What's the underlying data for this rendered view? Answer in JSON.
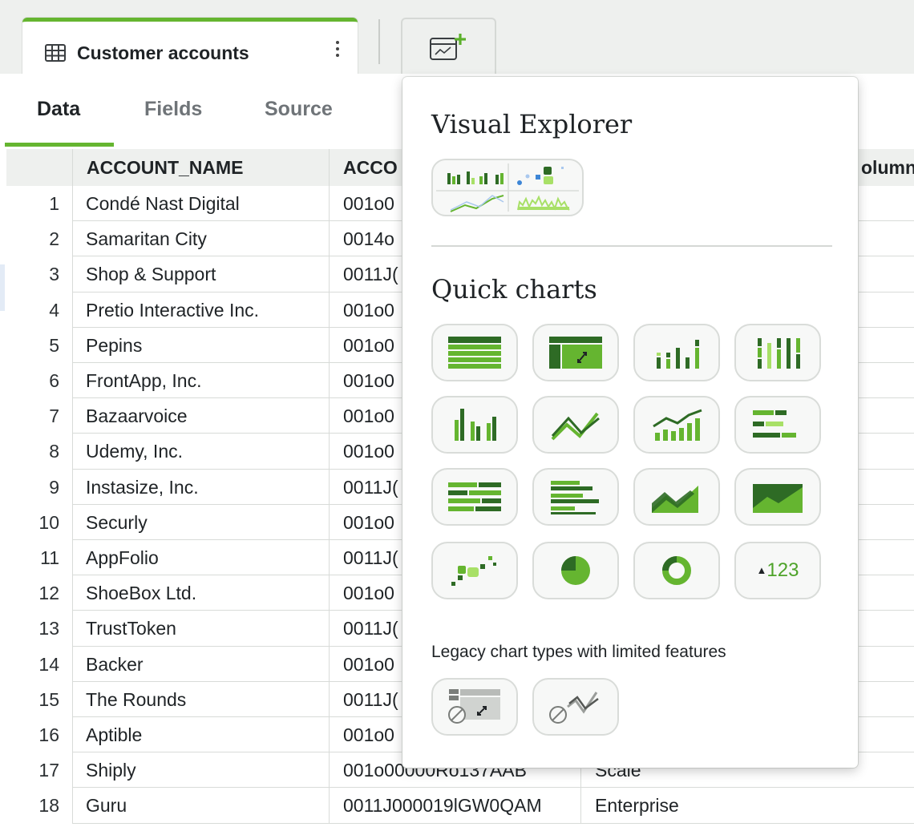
{
  "topbar": {
    "tab_label": "Customer accounts",
    "tab_icon": "table-icon",
    "kebab_icon": "kebab-icon",
    "add_icon": "add-chart-icon"
  },
  "subtabs": [
    {
      "label": "Data",
      "active": true
    },
    {
      "label": "Fields",
      "active": false
    },
    {
      "label": "Source",
      "active": false
    }
  ],
  "table": {
    "columns": [
      "ACCOUNT_NAME",
      "ACCO",
      "olumn_"
    ],
    "rows": [
      {
        "n": "1",
        "name": "Condé Nast Digital",
        "id": "001o0",
        "type": ""
      },
      {
        "n": "2",
        "name": "Samaritan City",
        "id": "0014o",
        "type": ""
      },
      {
        "n": "3",
        "name": "Shop & Support",
        "id": "0011J(",
        "type": ""
      },
      {
        "n": "4",
        "name": "Pretio Interactive Inc.",
        "id": "001o0",
        "type": ""
      },
      {
        "n": "5",
        "name": "Pepins",
        "id": "001o0",
        "type": ""
      },
      {
        "n": "6",
        "name": "FrontApp, Inc.",
        "id": "001o0",
        "type": ""
      },
      {
        "n": "7",
        "name": "Bazaarvoice",
        "id": "001o0",
        "type": ""
      },
      {
        "n": "8",
        "name": "Udemy, Inc.",
        "id": "001o0",
        "type": ""
      },
      {
        "n": "9",
        "name": "Instasize, Inc.",
        "id": "0011J(",
        "type": ""
      },
      {
        "n": "10",
        "name": "Securly",
        "id": "001o0",
        "type": ""
      },
      {
        "n": "11",
        "name": "AppFolio",
        "id": "0011J(",
        "type": ""
      },
      {
        "n": "12",
        "name": "ShoeBox Ltd.",
        "id": "001o0",
        "type": ""
      },
      {
        "n": "13",
        "name": "TrustToken",
        "id": "0011J(",
        "type": ""
      },
      {
        "n": "14",
        "name": "Backer",
        "id": "001o0",
        "type": ""
      },
      {
        "n": "15",
        "name": "The Rounds",
        "id": "0011J(",
        "type": ""
      },
      {
        "n": "16",
        "name": "Aptible",
        "id": "001o0",
        "type": ""
      },
      {
        "n": "17",
        "name": "Shiply",
        "id": "001o00000Ro137AAB",
        "type": "Scale"
      },
      {
        "n": "18",
        "name": "Guru",
        "id": "0011J000019lGW0QAM",
        "type": "Enterprise"
      }
    ]
  },
  "popover": {
    "visual_explorer_title": "Visual Explorer",
    "quick_charts_title": "Quick charts",
    "legacy_label": "Legacy chart types with limited features",
    "kpi_label": "123",
    "quick_charts": [
      "table-chart-icon",
      "pivot-table-icon",
      "bar-chart-icon",
      "grouped-bar-chart-icon",
      "column-chart-icon",
      "line-chart-icon",
      "line-bar-combo-icon",
      "horizontal-bar-chart-icon",
      "stacked-horizontal-bar-icon",
      "grouped-horizontal-bar-icon",
      "area-chart-icon",
      "stacked-area-chart-icon",
      "scatter-chart-icon",
      "pie-chart-icon",
      "donut-chart-icon",
      "kpi-icon"
    ],
    "legacy_charts": [
      "legacy-pivot-table-icon",
      "legacy-line-chart-icon"
    ]
  },
  "colors": {
    "accent": "#65b530",
    "dark_green": "#2e6b25",
    "light_green": "#a8e067"
  }
}
